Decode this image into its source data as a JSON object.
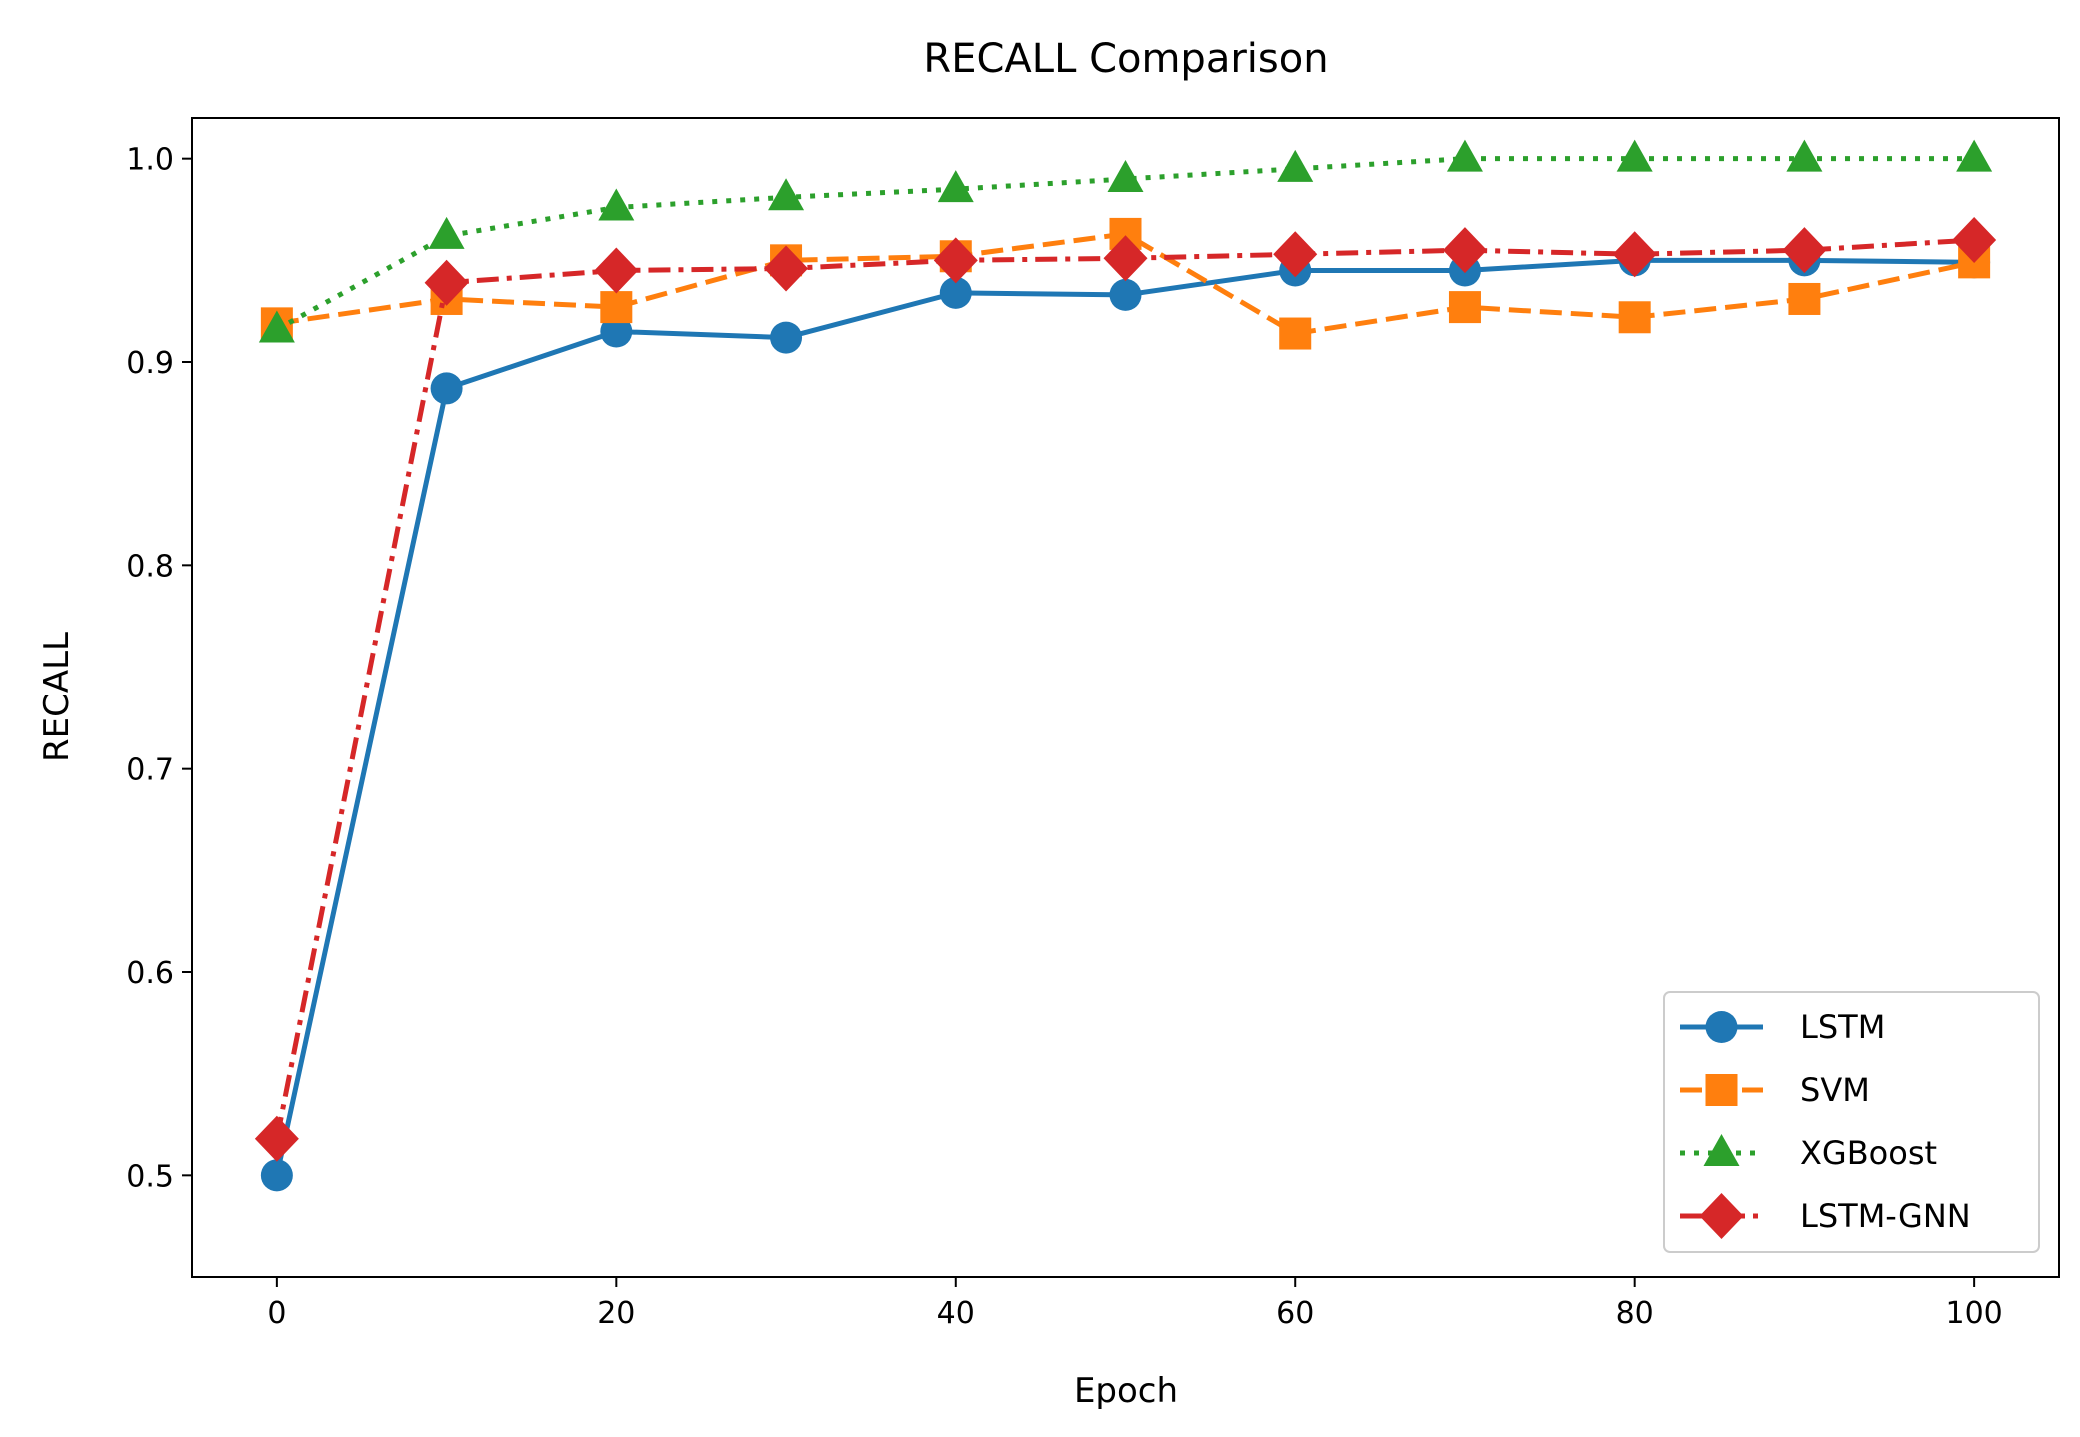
{
  "chart_data": {
    "type": "line",
    "title": "RECALL Comparison",
    "xlabel": "Epoch",
    "ylabel": "RECALL",
    "xlim": [
      -5,
      105
    ],
    "ylim": [
      0.45,
      1.02
    ],
    "xticks": [
      0,
      20,
      40,
      60,
      80,
      100
    ],
    "xtick_labels": [
      "0",
      "20",
      "40",
      "60",
      "80",
      "100"
    ],
    "yticks": [
      0.5,
      0.6,
      0.7,
      0.8,
      0.9,
      1.0
    ],
    "ytick_labels": [
      "0.5",
      "0.6",
      "0.7",
      "0.8",
      "0.9",
      "1.0"
    ],
    "grid": false,
    "legend_position": "lower-right",
    "x": [
      0,
      10,
      20,
      30,
      40,
      50,
      60,
      70,
      80,
      90,
      100
    ],
    "series": [
      {
        "name": "LSTM",
        "color": "#1f77b4",
        "line_style": "solid",
        "marker": "circle",
        "values": [
          0.5,
          0.887,
          0.915,
          0.912,
          0.934,
          0.933,
          0.945,
          0.945,
          0.95,
          0.95,
          0.949
        ]
      },
      {
        "name": "SVM",
        "color": "#ff7f0e",
        "line_style": "dashed",
        "marker": "square",
        "values": [
          0.919,
          0.931,
          0.927,
          0.95,
          0.952,
          0.963,
          0.914,
          0.927,
          0.922,
          0.931,
          0.949
        ]
      },
      {
        "name": "XGBoost",
        "color": "#2ca02c",
        "line_style": "dotted",
        "marker": "triangle",
        "values": [
          0.916,
          0.962,
          0.976,
          0.981,
          0.985,
          0.99,
          0.995,
          1.0,
          1.0,
          1.0,
          1.0
        ]
      },
      {
        "name": "LSTM-GNN",
        "color": "#d62728",
        "line_style": "dashdot",
        "marker": "diamond",
        "values": [
          0.518,
          0.939,
          0.945,
          0.946,
          0.95,
          0.951,
          0.953,
          0.955,
          0.953,
          0.955,
          0.96
        ]
      }
    ]
  }
}
